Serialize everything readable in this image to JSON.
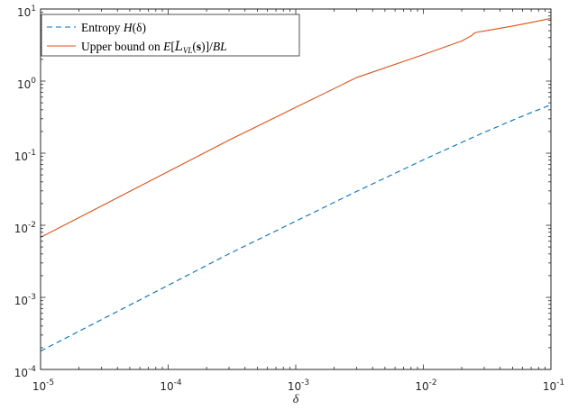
{
  "chart_data": {
    "type": "line",
    "xlabel": "δ",
    "ylabel": "",
    "xscale": "log",
    "yscale": "log",
    "xlim": [
      1e-05,
      0.1
    ],
    "ylim": [
      0.0001,
      10
    ],
    "x_ticks": [
      {
        "base": "10",
        "exp": "-5",
        "value": 1e-05
      },
      {
        "base": "10",
        "exp": "-4",
        "value": 0.0001
      },
      {
        "base": "10",
        "exp": "-3",
        "value": 0.001
      },
      {
        "base": "10",
        "exp": "-2",
        "value": 0.01
      },
      {
        "base": "10",
        "exp": "-1",
        "value": 0.1
      }
    ],
    "y_ticks": [
      {
        "base": "10",
        "exp": "-4",
        "value": 0.0001
      },
      {
        "base": "10",
        "exp": "-3",
        "value": 0.001
      },
      {
        "base": "10",
        "exp": "-2",
        "value": 0.01
      },
      {
        "base": "10",
        "exp": "-1",
        "value": 0.1
      },
      {
        "base": "10",
        "exp": "0",
        "value": 1
      },
      {
        "base": "10",
        "exp": "1",
        "value": 10
      }
    ],
    "grid": false,
    "legend_position": "top-left",
    "series": [
      {
        "name": "Entropy H(δ)",
        "legend_parts": [
          "Entropy ",
          "H",
          "(δ)"
        ],
        "color": "#0072BD",
        "style": "dashed",
        "x": [
          1e-05,
          3e-05,
          0.0001,
          0.0003,
          0.001,
          0.003,
          0.01,
          0.02,
          0.03,
          0.05,
          0.07,
          0.1
        ],
        "y": [
          0.00018,
          0.00049,
          0.00147,
          0.00402,
          0.0114,
          0.0295,
          0.0808,
          0.1414,
          0.1944,
          0.2864,
          0.3659,
          0.469
        ]
      },
      {
        "name": "Upper bound on E[L_VL(s)]/BL",
        "legend_parts": [
          "Upper bound on ",
          "E",
          "[",
          "L",
          "VL",
          "(",
          "s",
          ")]/",
          "BL"
        ],
        "color": "#D95319",
        "style": "solid",
        "x": [
          1e-05,
          3e-05,
          0.0001,
          0.0003,
          0.001,
          0.003,
          0.01,
          0.02,
          0.024,
          0.025,
          0.026,
          0.03,
          0.05,
          0.07,
          0.1
        ],
        "y": [
          0.0068,
          0.0185,
          0.0556,
          0.152,
          0.432,
          1.12,
          2.33,
          3.6,
          4.3,
          4.6,
          4.75,
          4.95,
          5.8,
          6.5,
          7.4
        ]
      }
    ]
  }
}
